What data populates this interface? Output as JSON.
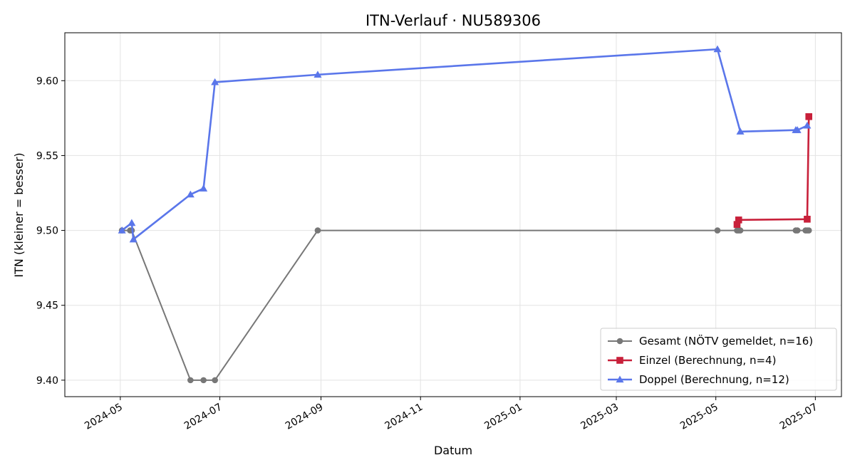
{
  "chart_data": {
    "type": "line",
    "title": "ITN-Verlauf · NU589306",
    "xlabel": "Datum",
    "ylabel": "ITN  (kleiner = besser)",
    "x_axis_type": "date",
    "xlim": [
      "2024-03-28",
      "2025-07-17"
    ],
    "ylim": [
      9.389,
      9.632
    ],
    "x_ticks": [
      "2024-05-01",
      "2024-07-01",
      "2024-09-01",
      "2024-11-01",
      "2025-01-01",
      "2025-03-01",
      "2025-05-01",
      "2025-07-01"
    ],
    "x_tick_labels": [
      "2024-05",
      "2024-07",
      "2024-09",
      "2024-11",
      "2025-01",
      "2025-03",
      "2025-05",
      "2025-07"
    ],
    "y_ticks": [
      9.4,
      9.45,
      9.5,
      9.55,
      9.6
    ],
    "y_tick_labels": [
      "9.40",
      "9.45",
      "9.50",
      "9.55",
      "9.60"
    ],
    "grid": true,
    "legend_position": "bottom-right",
    "series": [
      {
        "name": "Gesamt (NÖTV gemeldet, n=16)",
        "color": "#777777",
        "marker": "circle",
        "points": [
          {
            "x": "2024-05-02",
            "y": 9.5
          },
          {
            "x": "2024-05-07",
            "y": 9.5
          },
          {
            "x": "2024-05-08",
            "y": 9.5
          },
          {
            "x": "2024-06-13",
            "y": 9.4
          },
          {
            "x": "2024-06-21",
            "y": 9.4
          },
          {
            "x": "2024-06-28",
            "y": 9.4
          },
          {
            "x": "2024-08-30",
            "y": 9.5
          },
          {
            "x": "2025-05-02",
            "y": 9.5
          },
          {
            "x": "2025-05-14",
            "y": 9.5
          },
          {
            "x": "2025-05-15",
            "y": 9.5
          },
          {
            "x": "2025-05-16",
            "y": 9.5
          },
          {
            "x": "2025-06-19",
            "y": 9.5
          },
          {
            "x": "2025-06-20",
            "y": 9.5
          },
          {
            "x": "2025-06-25",
            "y": 9.5
          },
          {
            "x": "2025-06-26",
            "y": 9.5
          },
          {
            "x": "2025-06-27",
            "y": 9.5
          }
        ]
      },
      {
        "name": "Einzel (Berechnung, n=4)",
        "color": "#c8203a",
        "marker": "square",
        "points": [
          {
            "x": "2025-05-14",
            "y": 9.504
          },
          {
            "x": "2025-05-15",
            "y": 9.507
          },
          {
            "x": "2025-06-26",
            "y": 9.5075
          },
          {
            "x": "2025-06-27",
            "y": 9.576
          }
        ]
      },
      {
        "name": "Doppel (Berechnung, n=12)",
        "color": "#5a76ea",
        "marker": "triangle",
        "points": [
          {
            "x": "2024-05-02",
            "y": 9.5
          },
          {
            "x": "2024-05-08",
            "y": 9.505
          },
          {
            "x": "2024-05-09",
            "y": 9.494
          },
          {
            "x": "2024-06-13",
            "y": 9.524
          },
          {
            "x": "2024-06-21",
            "y": 9.528
          },
          {
            "x": "2024-06-28",
            "y": 9.599
          },
          {
            "x": "2024-08-30",
            "y": 9.604
          },
          {
            "x": "2025-05-02",
            "y": 9.621
          },
          {
            "x": "2025-05-16",
            "y": 9.566
          },
          {
            "x": "2025-06-19",
            "y": 9.567
          },
          {
            "x": "2025-06-20",
            "y": 9.567
          },
          {
            "x": "2025-06-26",
            "y": 9.57
          }
        ]
      }
    ]
  }
}
